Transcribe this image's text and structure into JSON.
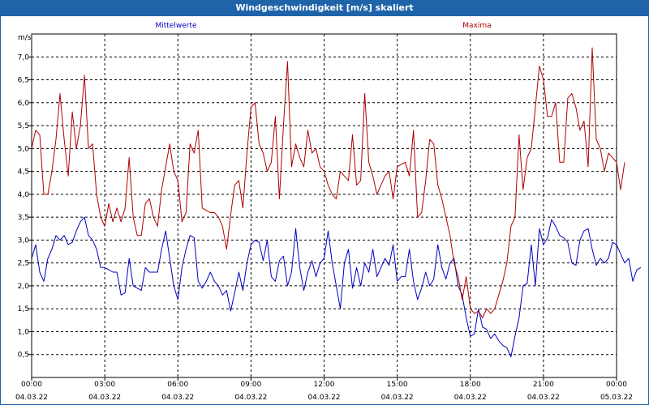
{
  "window": {
    "title": "Windgeschwindigkeit [m/s] skaliert"
  },
  "chart_data": {
    "type": "line",
    "title": "Windgeschwindigkeit [m/s] skaliert",
    "ylabel": "m/s",
    "ylim": [
      0,
      7.5
    ],
    "xlim_hours": [
      0,
      24
    ],
    "grid": true,
    "y_ticks": [
      "0,5",
      "1,0",
      "1,5",
      "2,0",
      "2,5",
      "3,0",
      "3,5",
      "4,0",
      "4,5",
      "5,0",
      "5,5",
      "6,0",
      "6,5",
      "7,0"
    ],
    "y_tick_values": [
      0.5,
      1.0,
      1.5,
      2.0,
      2.5,
      3.0,
      3.5,
      4.0,
      4.5,
      5.0,
      5.5,
      6.0,
      6.5,
      7.0
    ],
    "x_ticks": [
      {
        "time": "00:00",
        "date": "04.03.22"
      },
      {
        "time": "03:00",
        "date": "04.03.22"
      },
      {
        "time": "06:00",
        "date": "04.03.22"
      },
      {
        "time": "09:00",
        "date": "04.03.22"
      },
      {
        "time": "12:00",
        "date": "04.03.22"
      },
      {
        "time": "15:00",
        "date": "04.03.22"
      },
      {
        "time": "18:00",
        "date": "04.03.22"
      },
      {
        "time": "21:00",
        "date": "04.03.22"
      },
      {
        "time": "00:00",
        "date": "05.03.22"
      }
    ],
    "series": [
      {
        "name": "Mittelwerte",
        "color": "#0000c0",
        "interval_minutes": 10,
        "values": [
          2.6,
          2.9,
          2.3,
          2.1,
          2.6,
          2.8,
          3.1,
          3.0,
          3.1,
          2.9,
          2.95,
          3.2,
          3.4,
          3.5,
          3.1,
          3.0,
          2.8,
          2.4,
          2.4,
          2.35,
          2.3,
          2.3,
          1.8,
          1.85,
          2.6,
          2.0,
          1.95,
          1.9,
          2.4,
          2.3,
          2.3,
          2.3,
          2.8,
          3.2,
          2.6,
          2.0,
          1.7,
          2.4,
          2.8,
          3.1,
          3.05,
          2.1,
          1.95,
          2.1,
          2.3,
          2.1,
          2.0,
          1.8,
          1.9,
          1.45,
          1.85,
          2.3,
          1.9,
          2.5,
          2.9,
          3.0,
          2.95,
          2.55,
          3.0,
          2.2,
          2.1,
          2.55,
          2.65,
          2.0,
          2.3,
          3.25,
          2.4,
          1.9,
          2.3,
          2.55,
          2.2,
          2.5,
          2.6,
          3.2,
          2.5,
          2.0,
          1.5,
          2.5,
          2.8,
          1.95,
          2.4,
          2.0,
          2.5,
          2.3,
          2.8,
          2.2,
          2.4,
          2.6,
          2.45,
          2.9,
          2.1,
          2.2,
          2.2,
          2.8,
          2.1,
          1.7,
          1.95,
          2.3,
          2.0,
          2.15,
          2.9,
          2.4,
          2.15,
          2.5,
          2.6,
          2.0,
          1.8,
          1.3,
          0.9,
          0.95,
          1.5,
          1.1,
          1.05,
          0.85,
          0.95,
          0.8,
          0.7,
          0.65,
          0.45,
          0.9,
          1.3,
          2.0,
          2.05,
          2.9,
          2.0,
          3.25,
          2.9,
          3.05,
          3.45,
          3.3,
          3.1,
          3.05,
          2.95,
          2.5,
          2.45,
          3.0,
          3.2,
          3.25,
          2.8,
          2.45,
          2.6,
          2.5,
          2.6,
          2.95,
          2.9,
          2.7,
          2.5,
          2.6,
          2.1,
          2.35,
          2.4
        ]
      },
      {
        "name": "Maxima",
        "color": "#b00000",
        "interval_minutes": 10,
        "values": [
          5.0,
          5.4,
          5.3,
          4.0,
          4.0,
          4.5,
          5.2,
          6.2,
          5.2,
          4.4,
          5.8,
          5.0,
          5.5,
          6.6,
          5.0,
          5.1,
          4.0,
          3.5,
          3.3,
          3.8,
          3.4,
          3.7,
          3.4,
          3.7,
          4.8,
          3.5,
          3.1,
          3.1,
          3.8,
          3.9,
          3.5,
          3.3,
          4.1,
          4.6,
          5.1,
          4.5,
          4.3,
          3.4,
          3.6,
          5.1,
          4.9,
          5.4,
          3.7,
          3.65,
          3.6,
          3.6,
          3.5,
          3.3,
          2.8,
          3.55,
          4.2,
          4.3,
          3.7,
          4.9,
          5.9,
          6.0,
          5.1,
          4.9,
          4.5,
          4.7,
          5.7,
          3.9,
          5.5,
          6.9,
          4.6,
          5.1,
          4.8,
          4.6,
          5.4,
          4.9,
          5.0,
          4.6,
          4.5,
          4.2,
          4.0,
          3.9,
          4.5,
          4.4,
          4.3,
          5.3,
          4.2,
          4.3,
          6.2,
          4.7,
          4.4,
          4.0,
          4.2,
          4.4,
          4.5,
          3.9,
          4.6,
          4.65,
          4.7,
          4.4,
          5.4,
          3.5,
          3.6,
          4.3,
          5.2,
          5.1,
          4.2,
          3.9,
          3.5,
          3.1,
          2.5,
          2.2,
          1.7,
          2.2,
          1.5,
          1.4,
          1.45,
          1.3,
          1.5,
          1.4,
          1.5,
          1.8,
          2.1,
          2.5,
          3.3,
          3.5,
          5.3,
          4.1,
          4.8,
          5.0,
          5.9,
          6.8,
          6.5,
          5.7,
          5.7,
          6.0,
          4.7,
          4.7,
          6.1,
          6.2,
          5.9,
          5.4,
          5.6,
          4.6,
          7.2,
          5.2,
          5.0,
          4.5,
          4.9,
          4.8,
          4.7,
          4.1,
          4.7
        ]
      }
    ]
  }
}
